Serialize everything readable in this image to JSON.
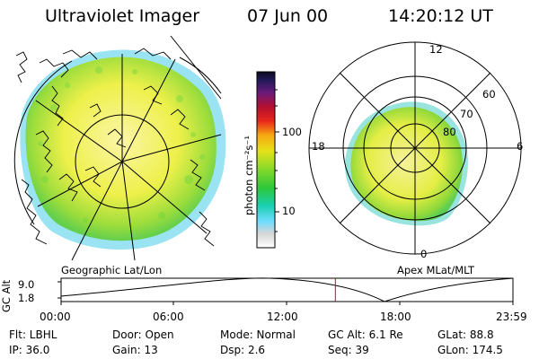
{
  "header": {
    "title": "Ultraviolet Imager",
    "date": "07 Jun 00",
    "time": "14:20:12 UT"
  },
  "geo_panel": {
    "label": "Geographic Lat/Lon"
  },
  "apex_panel": {
    "label": "Apex MLat/MLT",
    "mlt_labels": {
      "top": "12",
      "left": "18",
      "right": "6",
      "bottom": "0"
    },
    "lat_labels": [
      "60",
      "70",
      "80"
    ]
  },
  "colorbar": {
    "unit": "photon cm⁻²s⁻¹",
    "ticks": [
      "100",
      "10"
    ]
  },
  "timeline": {
    "ylabel": "GC Alt",
    "y_ticks": [
      "9.0",
      "1.8"
    ],
    "x_ticks": [
      "00:00",
      "06:00",
      "12:00",
      "18:00",
      "23:59"
    ],
    "current_time_fraction": 0.607
  },
  "info": {
    "flt": "Flt: LBHL",
    "door": "Door: Open",
    "mode": "Mode: Normal",
    "gcalt": "GC Alt: 6.1 Re",
    "glat": "GLat:  88.8",
    "ip": "IP: 36.0",
    "gain": "Gain: 13",
    "dsp": "Dsp:    2.6",
    "seq": "Seq: 39",
    "glon": "GLon: 174.5"
  },
  "colors": {
    "marker": "#e00000",
    "aurora_yellow": "#eef04a",
    "aurora_green": "#7fd63a",
    "edge_cyan": "#7fdcff"
  }
}
